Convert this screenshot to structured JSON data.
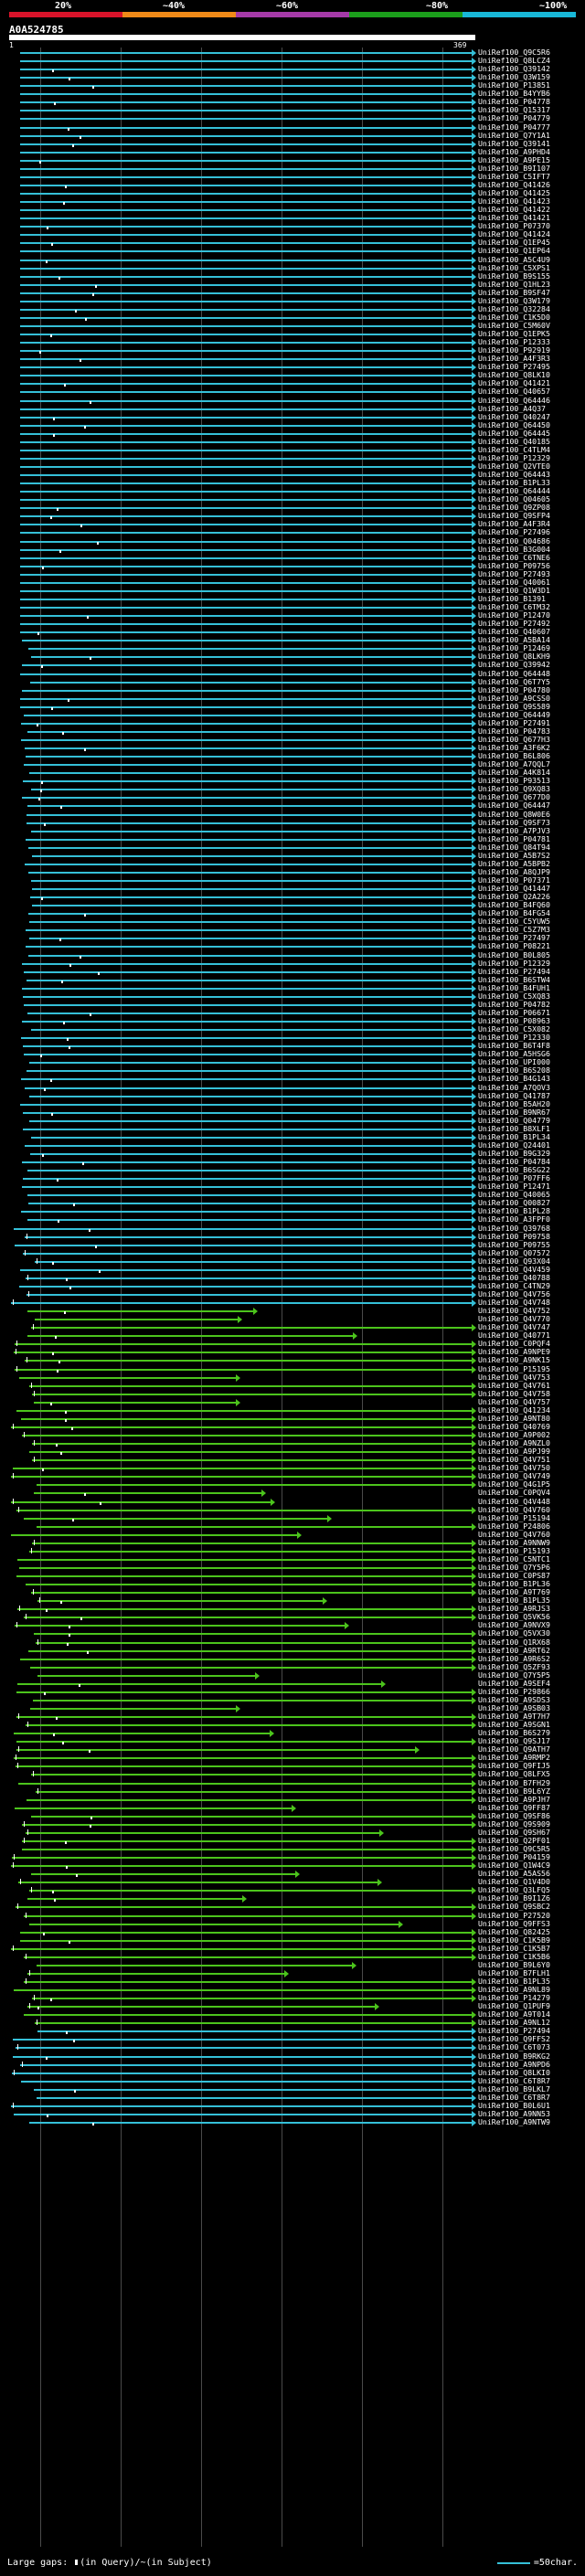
{
  "scale": {
    "labels": [
      "20%",
      "~40%",
      "~60%",
      "~80%",
      "~100%"
    ],
    "colors": [
      "#d9132a",
      "#d9132a",
      "#f08a18",
      "#f08a18",
      "#a53aa8",
      "#a53aa8",
      "#1b9e1b",
      "#1b9e1b",
      "#18b8d8",
      "#18b8d8"
    ]
  },
  "query": {
    "accession": "A0A524785",
    "start": "1",
    "end": "369"
  },
  "colors": {
    "blue": "#35c0d8",
    "green": "#4cc41c",
    "grid": "#4a4a4a"
  },
  "hits": [
    "UniRef100_Q9C5R6",
    "UniRef100_Q8LCZ4",
    "UniRef100_Q39142",
    "UniRef100_Q3W159",
    "UniRef100_P13851",
    "UniRef100_B4YYB6",
    "UniRef100_P04778",
    "UniRef100_Q15317",
    "UniRef100_P04779",
    "UniRef100_P04777",
    "UniRef100_Q7Y1A1",
    "UniRef100_Q39141",
    "UniRef100_A9PHD4",
    "UniRef100_A9PE15",
    "UniRef100_B9I107",
    "UniRef100_C5IFT7",
    "UniRef100_Q41426",
    "UniRef100_Q41425",
    "UniRef100_Q41423",
    "UniRef100_Q41422",
    "UniRef100_Q41421",
    "UniRef100_P07370",
    "UniRef100_Q41424",
    "UniRef100_Q1EP45",
    "UniRef100_Q1EP64",
    "UniRef100_A5C4U9",
    "UniRef100_C5XPS1",
    "UniRef100_B9S155",
    "UniRef100_Q1HL23",
    "UniRef100_B9SF47",
    "UniRef100_Q3W179",
    "UniRef100_Q32284",
    "UniRef100_C1K5D0",
    "UniRef100_C5M60V",
    "UniRef100_Q1EPK5",
    "UniRef100_P12333",
    "UniRef100_P92919",
    "UniRef100_A4F3R3",
    "UniRef100_P27495",
    "UniRef100_Q8LK10",
    "UniRef100_Q41421",
    "UniRef100_Q40657",
    "UniRef100_Q64446",
    "UniRef100_A4Q37",
    "UniRef100_Q40247",
    "UniRef100_Q64450",
    "UniRef100_Q64445",
    "UniRef100_Q40185",
    "UniRef100_C4TLM4",
    "UniRef100_P12329",
    "UniRef100_Q2VTE0",
    "UniRef100_Q64443",
    "UniRef100_B1PL33",
    "UniRef100_Q64444",
    "UniRef100_Q04605",
    "UniRef100_Q9ZP08",
    "UniRef100_Q9SFP4",
    "UniRef100_A4F3R4",
    "UniRef100_P27496",
    "UniRef100_Q04686",
    "UniRef100_B3G004",
    "UniRef100_C6TNE6",
    "UniRef100_P09756",
    "UniRef100_P27493",
    "UniRef100_Q40061",
    "UniRef100_Q1W3D1",
    "UniRef100_B1391",
    "UniRef100_C6TM32",
    "UniRef100_P12470",
    "UniRef100_P27492",
    "UniRef100_Q40607",
    "UniRef100_A5BA14",
    "UniRef100_P12469",
    "UniRef100_Q8LKH9",
    "UniRef100_Q39942",
    "UniRef100_Q64448",
    "UniRef100_Q6T7Y5",
    "UniRef100_P04780",
    "UniRef100_A9CSS0",
    "UniRef100_Q9S589",
    "UniRef100_Q64449",
    "UniRef100_P27491",
    "UniRef100_P04783",
    "UniRef100_Q677H3",
    "UniRef100_A3F6K2",
    "UniRef100_B6L806",
    "UniRef100_A7QQL7",
    "UniRef100_A4K814",
    "UniRef100_P93513",
    "UniRef100_Q9XQ83",
    "UniRef100_Q677D0",
    "UniRef100_Q64447",
    "UniRef100_Q8W0E6",
    "UniRef100_Q9SF73",
    "UniRef100_A7PJV3",
    "UniRef100_P04781",
    "UniRef100_Q84T94",
    "UniRef100_A5B7S2",
    "UniRef100_A5BPB2",
    "UniRef100_A8QJP9",
    "UniRef100_P07371",
    "UniRef100_Q41447",
    "UniRef100_Q2A226",
    "UniRef100_B4FQ60",
    "UniRef100_B4FG54",
    "UniRef100_C5YUW5",
    "UniRef100_C5Z7M3",
    "UniRef100_P27497",
    "UniRef100_P08221",
    "UniRef100_B0L805",
    "UniRef100_P12329",
    "UniRef100_P27494",
    "UniRef100_B6STW4",
    "UniRef100_B4FUH1",
    "UniRef100_C5XQ83",
    "UniRef100_P04782",
    "UniRef100_P06671",
    "UniRef100_P08963",
    "UniRef100_C5X082",
    "UniRef100_P12330",
    "UniRef100_B6T4F8",
    "UniRef100_A5HSG6",
    "UniRef100_UPI000",
    "UniRef100_B6S208",
    "UniRef100_B4G143",
    "UniRef100_A7QOV3",
    "UniRef100_Q41787",
    "UniRef100_B5AH20",
    "UniRef100_B9NR67",
    "UniRef100_Q04779",
    "UniRef100_B8XLF1",
    "UniRef100_B1PL34",
    "UniRef100_Q24401",
    "UniRef100_B9G329",
    "UniRef100_P04784",
    "UniRef100_B6SG22",
    "UniRef100_P07FF6",
    "UniRef100_P12471",
    "UniRef100_Q40065",
    "UniRef100_Q00827",
    "UniRef100_B1PL28",
    "UniRef100_A3FPF0",
    "UniRef100_Q39768",
    "UniRef100_P09758",
    "UniRef100_P09755",
    "UniRef100_Q07572",
    "UniRef100_Q93X04",
    "UniRef100_Q4V459",
    "UniRef100_Q40788",
    "UniRef100_C4TN29",
    "UniRef100_Q4V756",
    "UniRef100_Q4V748",
    "UniRef100_Q4V752",
    "UniRef100_Q4V770",
    "UniRef100_Q4V747",
    "UniRef100_Q40771",
    "UniRef100_C0PQF4",
    "UniRef100_A9NPE9",
    "UniRef100_A9NK15",
    "UniRef100_P15195",
    "UniRef100_Q4V753",
    "UniRef100_Q4V761",
    "UniRef100_Q4V758",
    "UniRef100_Q4V757",
    "UniRef100_Q41234",
    "UniRef100_A9NT80",
    "UniRef100_Q40769",
    "UniRef100_A9P002",
    "UniRef100_A9NZL0",
    "UniRef100_A9PJ99",
    "UniRef100_Q4V751",
    "UniRef100_Q4V750",
    "UniRef100_Q4V749",
    "UniRef100_Q4G1P5",
    "UniRef100_C0PQV4",
    "UniRef100_Q4V448",
    "UniRef100_Q4V760",
    "UniRef100_P15194",
    "UniRef100_P24806",
    "UniRef100_Q4V760",
    "UniRef100_A9NNW9",
    "UniRef100_P15193",
    "UniRef100_C5NTC1",
    "UniRef100_Q7Y5P6",
    "UniRef100_C0PS87",
    "UniRef100_B1PL36",
    "UniRef100_A9T769",
    "UniRef100_B1PL35",
    "UniRef100_A9RJS3",
    "UniRef100_Q5VK56",
    "UniRef100_A9NVX9",
    "UniRef100_Q5VX30",
    "UniRef100_Q1RX68",
    "UniRef100_A9RT62",
    "UniRef100_A9R6S2",
    "UniRef100_Q5ZF93",
    "UniRef100_Q7Y5P5",
    "UniRef100_A9SEF4",
    "UniRef100_P29866",
    "UniRef100_A9SDS3",
    "UniRef100_A9SB03",
    "UniRef100_A9T7H7",
    "UniRef100_A9SGN1",
    "UniRef100_B6S279",
    "UniRef100_Q9SJ17",
    "UniRef100_Q9ATH7",
    "UniRef100_A9RMP2",
    "UniRef100_Q9FIJ5",
    "UniRef100_Q8LFX5",
    "UniRef100_B7FH29",
    "UniRef100_B9L6YZ",
    "UniRef100_A9PJH7",
    "UniRef100_Q9FF87",
    "UniRef100_Q9SF86",
    "UniRef100_Q9S909",
    "UniRef100_Q9SH67",
    "UniRef100_Q2PF01",
    "UniRef100_Q9C5R5",
    "UniRef100_P04159",
    "UniRef100_Q1W4C9",
    "UniRef100_A5AS56",
    "UniRef100_Q1V4D0",
    "UniRef100_Q3LFQ5",
    "UniRef100_B9I1Z6",
    "UniRef100_Q9SBC2",
    "UniRef100_P27520",
    "UniRef100_Q9FFS3",
    "UniRef100_Q82425",
    "UniRef100_C1K5B9",
    "UniRef100_C1K5B7",
    "UniRef100_C1K5B6",
    "UniRef100_B9L6Y0",
    "UniRef100_B7FLH1",
    "UniRef100_B1PL35",
    "UniRef100_A9NL89",
    "UniRef100_P14279",
    "UniRef100_Q1PUF9",
    "UniRef100_A9T014",
    "UniRef100_A9NL12",
    "UniRef100_P27494",
    "UniRef100_Q9FFS2",
    "UniRef100_C6T073",
    "UniRef100_B9RKG2",
    "UniRef100_A9NPD6",
    "UniRef100_Q8LKI0",
    "UniRef100_C6T8R7",
    "UniRef100_B9LKL7",
    "UniRef100_C6T8R7",
    "UniRef100_B0L6U1",
    "UniRef100_A9NN53",
    "UniRef100_A9NTW9"
  ],
  "footer": {
    "gaps_label": "Large gaps:",
    "gaps_query": "(in Query)",
    "gaps_separator": "/",
    "gaps_subject": "~(in Subject)",
    "legend_text": "=50char."
  }
}
